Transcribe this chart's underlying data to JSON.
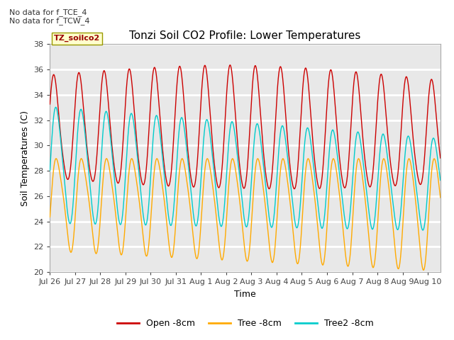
{
  "title": "Tonzi Soil CO2 Profile: Lower Temperatures",
  "xlabel": "Time",
  "ylabel": "Soil Temperatures (C)",
  "annotation_lines": [
    "No data for f_TCE_4",
    "No data for f_TCW_4"
  ],
  "dataset_label": "TZ_soilco2",
  "ylim": [
    20,
    38
  ],
  "legend_labels": [
    "Open -8cm",
    "Tree -8cm",
    "Tree2 -8cm"
  ],
  "line_colors": [
    "#cc0000",
    "#ffaa00",
    "#00cccc"
  ],
  "plot_bg_color": "#e8e8e8",
  "tick_labels": [
    "Jul 26",
    "Jul 27",
    "Jul 28",
    "Jul 29",
    "Jul 30",
    "Jul 31",
    "Aug 1",
    "Aug 2",
    "Aug 3",
    "Aug 4",
    "Aug 5",
    "Aug 6",
    "Aug 7",
    "Aug 8",
    "Aug 9",
    "Aug 10"
  ],
  "n_days": 15.5,
  "yticks": [
    20,
    22,
    24,
    26,
    28,
    30,
    32,
    34,
    36,
    38
  ]
}
